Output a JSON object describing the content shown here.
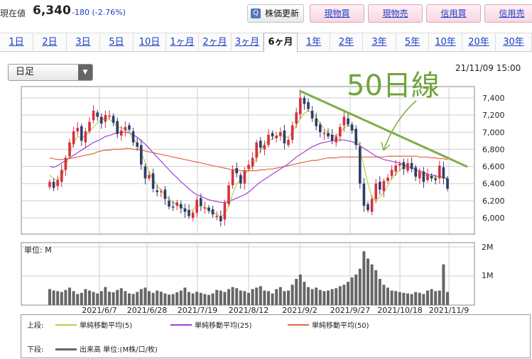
{
  "header": {
    "price_label": "現在値",
    "price": "6,340",
    "change": "-180 (-2.76%)",
    "update_button": "株価更新",
    "buttons": [
      "現物買",
      "現物売",
      "信用買",
      "信用売"
    ]
  },
  "tabs": [
    "1日",
    "2日",
    "3日",
    "5日",
    "10日",
    "1ヶ月",
    "2ヶ月",
    "3ヶ月",
    "6ヶ月",
    "1年",
    "2年",
    "3年",
    "5年",
    "10年",
    "20年",
    "30年"
  ],
  "active_tab": "6ヶ月",
  "bar_type": "日足",
  "timestamp": "21/11/09 15:00",
  "annotation": "50日線",
  "legend": {
    "upper_label": "上段:",
    "lower_label": "下段:",
    "ma5": "単純移動平均(5)",
    "ma25": "単純移動平均(25)",
    "ma50": "単純移動平均(50)",
    "volume": "出来高 単位:(M株/口/枚)"
  },
  "colors": {
    "up": "#d6303f",
    "down": "#2e3c6a",
    "ma5": "#b9cf48",
    "ma25": "#a23fd0",
    "ma50": "#e0673f",
    "trendline": "#7fae45",
    "volume": "#666666"
  },
  "chart_data": [
    {
      "type": "candlestick",
      "price_ticks": [
        "7,400",
        "7,200",
        "7,000",
        "6,800",
        "6,600",
        "6,400",
        "6,200",
        "6,000"
      ],
      "ylim": [
        5850,
        7550
      ],
      "x_labels": [
        "2021/6/7",
        "2021/6/28",
        "2021/7/19",
        "2021/8/12",
        "2021/9/2",
        "2021/9/27",
        "2021/10/18",
        "2021/11/9"
      ],
      "closes": [
        6420,
        6350,
        6440,
        6560,
        6700,
        6880,
        7010,
        7050,
        6900,
        7010,
        7120,
        7250,
        7180,
        7100,
        7200,
        7190,
        7110,
        6980,
        7020,
        7060,
        7030,
        6880,
        6830,
        6620,
        6460,
        6500,
        6340,
        6300,
        6310,
        6220,
        6130,
        6120,
        6180,
        6110,
        6070,
        6020,
        6060,
        6210,
        6140,
        6120,
        6080,
        6040,
        6020,
        5960,
        6180,
        6380,
        6560,
        6520,
        6400,
        6550,
        6620,
        6700,
        6880,
        6820,
        6850,
        6970,
        6950,
        6960,
        7000,
        6870,
        6910,
        7080,
        7230,
        7400,
        7330,
        7270,
        7160,
        7070,
        7000,
        6990,
        6950,
        6900,
        6950,
        7060,
        7180,
        7090,
        7020,
        6850,
        6400,
        6140,
        6090,
        6220,
        6400,
        6330,
        6430,
        6470,
        6560,
        6610,
        6630,
        6570,
        6640,
        6570,
        6480,
        6540,
        6420,
        6510,
        6460,
        6440,
        6610,
        6460,
        6340
      ],
      "ma5": [
        6500,
        6455,
        6440,
        6485,
        6600,
        6740,
        6880,
        6950,
        6930,
        6960,
        7010,
        7060,
        7110,
        7140,
        7170,
        7150,
        7120,
        7070,
        7050,
        7040,
        6990,
        6930,
        6860,
        6760,
        6650,
        6540,
        6450,
        6380,
        6320,
        6260,
        6220,
        6180,
        6160,
        6130,
        6100,
        6080,
        6100,
        6130,
        6140,
        6120,
        6090,
        6060,
        6040,
        6010,
        6050,
        6130,
        6280,
        6400,
        6440,
        6500,
        6560,
        6600,
        6700,
        6790,
        6860,
        6900,
        6920,
        6950,
        6960,
        6950,
        6940,
        7000,
        7080,
        7160,
        7220,
        7250,
        7220,
        7170,
        7100,
        7040,
        6990,
        6960,
        6960,
        6990,
        7050,
        7080,
        7060,
        6980,
        6800,
        6600,
        6400,
        6240,
        6200,
        6240,
        6300,
        6370,
        6460,
        6510,
        6560,
        6580,
        6590,
        6590,
        6560,
        6530,
        6500,
        6490,
        6480,
        6470,
        6490,
        6470,
        6440
      ],
      "ma25": [
        6600,
        6590,
        6610,
        6640,
        6670,
        6700,
        6730,
        6760,
        6790,
        6820,
        6850,
        6880,
        6900,
        6920,
        6950,
        6960,
        6980,
        6990,
        7000,
        7000,
        6990,
        6970,
        6940,
        6900,
        6860,
        6810,
        6760,
        6710,
        6660,
        6610,
        6560,
        6510,
        6470,
        6420,
        6380,
        6340,
        6300,
        6270,
        6250,
        6230,
        6210,
        6200,
        6190,
        6180,
        6180,
        6190,
        6210,
        6230,
        6250,
        6270,
        6300,
        6340,
        6380,
        6420,
        6450,
        6480,
        6510,
        6540,
        6570,
        6600,
        6630,
        6670,
        6710,
        6740,
        6770,
        6800,
        6830,
        6850,
        6870,
        6880,
        6890,
        6900,
        6910,
        6910,
        6910,
        6900,
        6890,
        6870,
        6840,
        6810,
        6780,
        6750,
        6720,
        6700,
        6680,
        6670,
        6660,
        6650,
        6640,
        6620,
        6600,
        6580,
        6560,
        6550,
        6530,
        6510,
        6500,
        6490,
        6480,
        6470,
        6460
      ],
      "ma50": [
        6700,
        6690,
        6680,
        6680,
        6690,
        6690,
        6700,
        6710,
        6720,
        6730,
        6740,
        6750,
        6770,
        6780,
        6790,
        6790,
        6800,
        6800,
        6800,
        6810,
        6810,
        6800,
        6800,
        6790,
        6780,
        6770,
        6760,
        6750,
        6740,
        6730,
        6720,
        6710,
        6700,
        6690,
        6680,
        6670,
        6660,
        6650,
        6640,
        6630,
        6620,
        6610,
        6600,
        6590,
        6580,
        6570,
        6560,
        6560,
        6550,
        6550,
        6550,
        6550,
        6550,
        6560,
        6560,
        6570,
        6570,
        6580,
        6590,
        6600,
        6610,
        6620,
        6630,
        6640,
        6650,
        6660,
        6670,
        6670,
        6680,
        6690,
        6700,
        6700,
        6700,
        6710,
        6710,
        6710,
        6710,
        6710,
        6710,
        6710,
        6710,
        6710,
        6710,
        6710,
        6710,
        6720,
        6720,
        6720,
        6720,
        6720,
        6720,
        6720,
        6720,
        6710,
        6710,
        6710,
        6700,
        6700,
        6690,
        6690,
        6680
      ],
      "trendline": [
        [
          63,
          7480
        ],
        [
          100,
          6600
        ]
      ]
    },
    {
      "type": "bar",
      "series_name": "出来高",
      "unit_label": "単位: M",
      "ylim": [
        0,
        2.0
      ],
      "y_ticks": [
        "2M",
        "1M"
      ],
      "values": [
        0.55,
        0.5,
        0.48,
        0.45,
        0.52,
        0.6,
        0.48,
        0.38,
        0.42,
        0.55,
        0.5,
        0.45,
        0.4,
        0.48,
        0.62,
        0.46,
        0.44,
        0.52,
        0.58,
        0.48,
        0.4,
        0.38,
        0.45,
        0.55,
        0.6,
        0.48,
        0.42,
        0.5,
        0.46,
        0.4,
        0.36,
        0.38,
        0.44,
        0.5,
        0.6,
        0.45,
        0.4,
        0.46,
        0.42,
        0.38,
        0.35,
        0.4,
        0.52,
        0.5,
        0.45,
        0.55,
        0.62,
        0.58,
        0.5,
        0.48,
        0.42,
        0.55,
        0.6,
        0.65,
        0.5,
        0.48,
        0.4,
        0.55,
        0.62,
        0.48,
        0.5,
        0.7,
        0.9,
        1.05,
        0.8,
        0.62,
        0.55,
        0.6,
        0.52,
        0.48,
        0.5,
        0.55,
        0.58,
        0.65,
        0.7,
        0.8,
        0.95,
        1.05,
        1.25,
        1.85,
        1.6,
        1.4,
        1.2,
        0.9,
        0.7,
        0.6,
        0.5,
        0.48,
        0.45,
        0.42,
        0.4,
        0.38,
        0.45,
        0.42,
        0.38,
        0.5,
        0.55,
        0.48,
        0.5,
        1.4,
        0.45
      ]
    }
  ]
}
